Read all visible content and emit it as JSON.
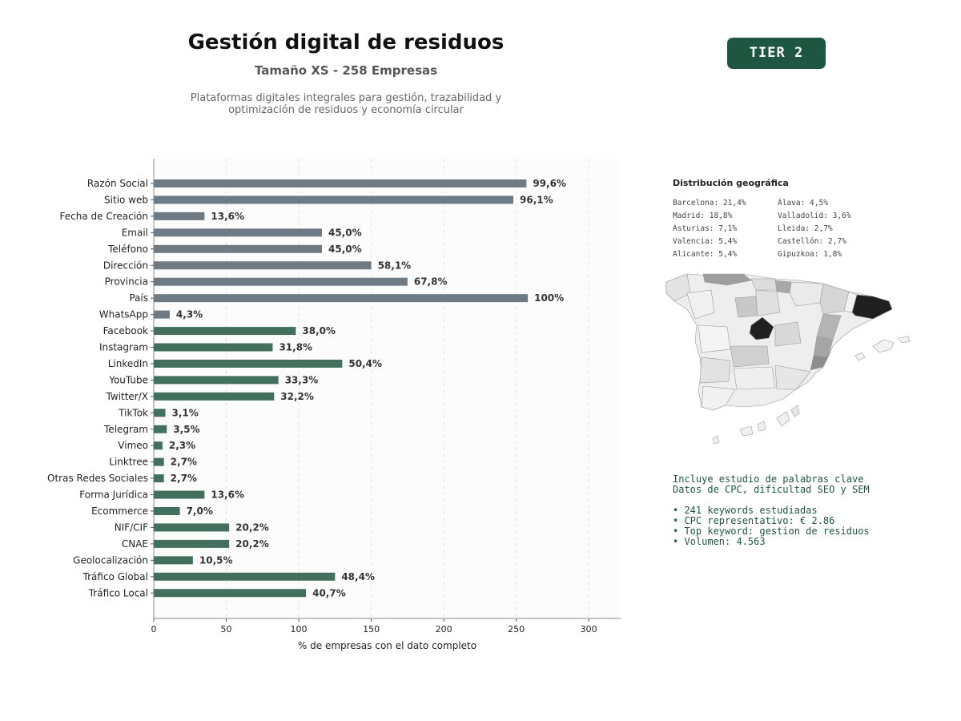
{
  "header": {
    "title": "Gestión digital de residuos",
    "subtitle": "Tamaño XS - 258 Empresas",
    "description_line1": "Plataformas digitales integrales para gestión, trazabilidad y",
    "description_line2": "optimización de residuos y economía circular",
    "badge": "TIER 2"
  },
  "colors": {
    "gray_bar": "#6f7b84",
    "green_bar": "#43705d",
    "badge_bg": "#1e5641",
    "plot_bg": "#fcfcfc"
  },
  "chart_data": {
    "type": "bar",
    "orientation": "horizontal",
    "xlabel": "% de empresas con el dato completo",
    "xlim": [
      0,
      322
    ],
    "xticks": [
      0,
      50,
      100,
      150,
      200,
      250,
      300
    ],
    "grid": "vertical dashed",
    "categories": [
      "Razón Social",
      "Sitio web",
      "Fecha de Creación",
      "Email",
      "Teléfono",
      "Dirección",
      "Provincia",
      "País",
      "WhatsApp",
      "Facebook",
      "Instagram",
      "LinkedIn",
      "YouTube",
      "Twitter/X",
      "TikTok",
      "Telegram",
      "Vimeo",
      "Linktree",
      "Otras Redes Sociales",
      "Forma Jurídica",
      "Ecommerce",
      "NIF/CIF",
      "CNAE",
      "Geolocalización",
      "Tráfico Global",
      "Tráfico Local"
    ],
    "values": [
      257,
      248,
      35,
      116,
      116,
      150,
      175,
      258,
      11,
      98,
      82,
      130,
      86,
      83,
      8,
      9,
      6,
      7,
      7,
      35,
      18,
      52,
      52,
      27,
      125,
      105
    ],
    "labels": [
      "99,6%",
      "96,1%",
      "13,6%",
      "45,0%",
      "45,0%",
      "58,1%",
      "67,8%",
      "100%",
      "4,3%",
      "38,0%",
      "31,8%",
      "50,4%",
      "33,3%",
      "32,2%",
      "3,1%",
      "3,5%",
      "2,3%",
      "2,7%",
      "2,7%",
      "13,6%",
      "7,0%",
      "20,2%",
      "20,2%",
      "10,5%",
      "48,4%",
      "40,7%"
    ],
    "bar_groups": [
      "gray",
      "gray",
      "gray",
      "gray",
      "gray",
      "gray",
      "gray",
      "gray",
      "gray",
      "green",
      "green",
      "green",
      "green",
      "green",
      "green",
      "green",
      "green",
      "green",
      "green",
      "green",
      "green",
      "green",
      "green",
      "green",
      "green",
      "green"
    ]
  },
  "geo": {
    "title": "Distribución geográfica",
    "col1": [
      "Barcelona: 21,4%",
      "Madrid: 18,8%",
      "Asturias: 7,1%",
      "Valencia: 5,4%",
      "Alicante: 5,4%"
    ],
    "col2": [
      "Álava: 4,5%",
      "Valladolid: 3,6%",
      "Lleida: 2,7%",
      "Castellón: 2,7%",
      "Gipuzkoa: 1,8%"
    ]
  },
  "keywords": {
    "line1": "Incluye estudio de palabras clave",
    "line2": "Datos de CPC, dificultad SEO y SEM",
    "bullets": [
      "• 241 keywords estudiadas",
      "• CPC representativo: € 2.86",
      "• Top keyword: gestion de residuos",
      "• Volumen: 4.563"
    ]
  }
}
